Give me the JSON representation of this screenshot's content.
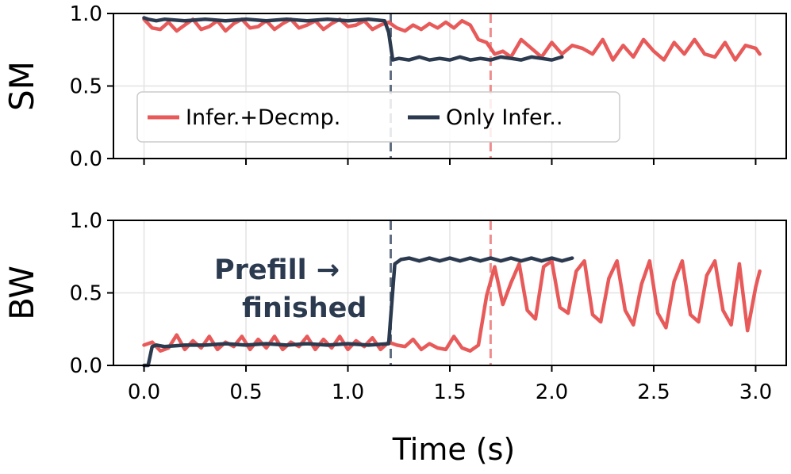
{
  "chart_data": [
    {
      "panel": "top",
      "type": "line",
      "ylabel": "SM",
      "ylim": [
        0.0,
        1.0
      ],
      "yticks": [
        "0.0",
        "0.5",
        "1.0"
      ],
      "xlim": [
        -0.15,
        3.15
      ],
      "grid": true,
      "legend": {
        "placement": "center-left",
        "entries": [
          {
            "label": "Infer.+Decmp.",
            "color": "#e85a5a"
          },
          {
            "label": "Only Infer..",
            "color": "#2b3a4f"
          }
        ]
      },
      "vlines": [
        {
          "x": 1.21,
          "color": "#5f6e80",
          "style": "dashed"
        },
        {
          "x": 1.7,
          "color": "#ee8d8d",
          "style": "dashed"
        }
      ],
      "series": [
        {
          "name": "Infer.+Decmp.",
          "color": "#e85a5a",
          "x": [
            0.0,
            0.04,
            0.08,
            0.12,
            0.16,
            0.2,
            0.24,
            0.28,
            0.32,
            0.36,
            0.4,
            0.44,
            0.48,
            0.52,
            0.56,
            0.6,
            0.64,
            0.68,
            0.72,
            0.76,
            0.8,
            0.84,
            0.88,
            0.92,
            0.96,
            1.0,
            1.04,
            1.08,
            1.12,
            1.16,
            1.2,
            1.24,
            1.28,
            1.32,
            1.36,
            1.4,
            1.44,
            1.48,
            1.52,
            1.56,
            1.6,
            1.64,
            1.68,
            1.72,
            1.76,
            1.8,
            1.85,
            1.9,
            1.95,
            2.0,
            2.05,
            2.1,
            2.15,
            2.2,
            2.25,
            2.3,
            2.35,
            2.4,
            2.45,
            2.5,
            2.55,
            2.6,
            2.65,
            2.7,
            2.75,
            2.8,
            2.85,
            2.9,
            2.95,
            3.0,
            3.02
          ],
          "values": [
            0.96,
            0.9,
            0.89,
            0.94,
            0.88,
            0.92,
            0.96,
            0.89,
            0.91,
            0.95,
            0.88,
            0.93,
            0.96,
            0.9,
            0.91,
            0.95,
            0.89,
            0.93,
            0.96,
            0.9,
            0.92,
            0.95,
            0.89,
            0.93,
            0.96,
            0.91,
            0.92,
            0.95,
            0.89,
            0.92,
            0.94,
            0.9,
            0.88,
            0.92,
            0.89,
            0.93,
            0.9,
            0.94,
            0.9,
            0.95,
            0.92,
            0.82,
            0.8,
            0.72,
            0.74,
            0.7,
            0.82,
            0.76,
            0.7,
            0.8,
            0.72,
            0.78,
            0.76,
            0.72,
            0.82,
            0.68,
            0.78,
            0.7,
            0.82,
            0.74,
            0.68,
            0.8,
            0.72,
            0.82,
            0.72,
            0.7,
            0.8,
            0.68,
            0.78,
            0.76,
            0.72
          ]
        },
        {
          "name": "Only Infer..",
          "color": "#2b3a4f",
          "x": [
            0.0,
            0.02,
            0.06,
            0.1,
            0.2,
            0.3,
            0.4,
            0.5,
            0.6,
            0.7,
            0.8,
            0.9,
            1.0,
            1.1,
            1.18,
            1.2,
            1.22,
            1.25,
            1.3,
            1.35,
            1.4,
            1.45,
            1.5,
            1.55,
            1.6,
            1.65,
            1.7,
            1.75,
            1.8,
            1.85,
            1.9,
            1.95,
            2.0,
            2.05
          ],
          "values": [
            0.97,
            0.96,
            0.95,
            0.96,
            0.95,
            0.96,
            0.95,
            0.96,
            0.95,
            0.96,
            0.95,
            0.96,
            0.95,
            0.96,
            0.95,
            0.87,
            0.68,
            0.69,
            0.68,
            0.7,
            0.68,
            0.69,
            0.68,
            0.7,
            0.68,
            0.69,
            0.68,
            0.7,
            0.69,
            0.68,
            0.7,
            0.69,
            0.68,
            0.7
          ]
        }
      ]
    },
    {
      "panel": "bottom",
      "type": "line",
      "ylabel": "BW",
      "xlabel": "Time (s)",
      "ylim": [
        0.0,
        1.0
      ],
      "yticks": [
        "0.0",
        "0.5",
        "1.0"
      ],
      "xticks": [
        "0.0",
        "0.5",
        "1.0",
        "1.5",
        "2.0",
        "2.5",
        "3.0"
      ],
      "xlim": [
        -0.15,
        3.15
      ],
      "grid": true,
      "annotation": {
        "lines": [
          "Prefill →",
          "finished"
        ],
        "color": "#2b3a4f"
      },
      "vlines": [
        {
          "x": 1.21,
          "color": "#5f6e80",
          "style": "dashed"
        },
        {
          "x": 1.7,
          "color": "#ee8d8d",
          "style": "dashed"
        }
      ],
      "series": [
        {
          "name": "Infer.+Decmp.",
          "color": "#e85a5a",
          "x": [
            0.0,
            0.04,
            0.08,
            0.12,
            0.16,
            0.2,
            0.24,
            0.28,
            0.32,
            0.36,
            0.4,
            0.44,
            0.48,
            0.52,
            0.56,
            0.6,
            0.64,
            0.68,
            0.72,
            0.76,
            0.8,
            0.84,
            0.88,
            0.92,
            0.96,
            1.0,
            1.04,
            1.08,
            1.12,
            1.16,
            1.2,
            1.24,
            1.28,
            1.32,
            1.36,
            1.4,
            1.44,
            1.48,
            1.52,
            1.56,
            1.6,
            1.64,
            1.68,
            1.72,
            1.76,
            1.8,
            1.84,
            1.88,
            1.92,
            1.96,
            2.0,
            2.04,
            2.08,
            2.12,
            2.16,
            2.2,
            2.24,
            2.28,
            2.32,
            2.36,
            2.4,
            2.44,
            2.48,
            2.52,
            2.56,
            2.6,
            2.64,
            2.68,
            2.72,
            2.76,
            2.8,
            2.84,
            2.88,
            2.92,
            2.96,
            3.0,
            3.02
          ],
          "values": [
            0.14,
            0.16,
            0.1,
            0.12,
            0.21,
            0.11,
            0.17,
            0.12,
            0.2,
            0.11,
            0.16,
            0.13,
            0.2,
            0.11,
            0.18,
            0.12,
            0.2,
            0.11,
            0.16,
            0.13,
            0.2,
            0.11,
            0.18,
            0.12,
            0.2,
            0.11,
            0.17,
            0.13,
            0.19,
            0.11,
            0.16,
            0.14,
            0.13,
            0.18,
            0.11,
            0.15,
            0.12,
            0.11,
            0.2,
            0.12,
            0.1,
            0.14,
            0.48,
            0.68,
            0.42,
            0.57,
            0.7,
            0.38,
            0.32,
            0.68,
            0.72,
            0.4,
            0.36,
            0.65,
            0.72,
            0.35,
            0.3,
            0.6,
            0.72,
            0.38,
            0.28,
            0.56,
            0.72,
            0.36,
            0.26,
            0.58,
            0.72,
            0.35,
            0.3,
            0.62,
            0.72,
            0.38,
            0.28,
            0.7,
            0.24,
            0.54,
            0.65
          ]
        },
        {
          "name": "Only Infer..",
          "color": "#2b3a4f",
          "x": [
            0.0,
            0.02,
            0.04,
            0.06,
            0.1,
            0.2,
            0.3,
            0.4,
            0.5,
            0.6,
            0.7,
            0.8,
            0.9,
            1.0,
            1.1,
            1.2,
            1.23,
            1.26,
            1.3,
            1.35,
            1.4,
            1.45,
            1.5,
            1.55,
            1.6,
            1.65,
            1.7,
            1.75,
            1.8,
            1.85,
            1.9,
            1.95,
            2.0,
            2.05,
            2.1
          ],
          "values": [
            0.0,
            0.0,
            0.13,
            0.14,
            0.13,
            0.14,
            0.14,
            0.15,
            0.14,
            0.15,
            0.14,
            0.15,
            0.14,
            0.15,
            0.14,
            0.15,
            0.7,
            0.73,
            0.74,
            0.72,
            0.74,
            0.72,
            0.74,
            0.72,
            0.74,
            0.72,
            0.74,
            0.72,
            0.74,
            0.72,
            0.74,
            0.72,
            0.74,
            0.72,
            0.74
          ]
        }
      ]
    }
  ]
}
